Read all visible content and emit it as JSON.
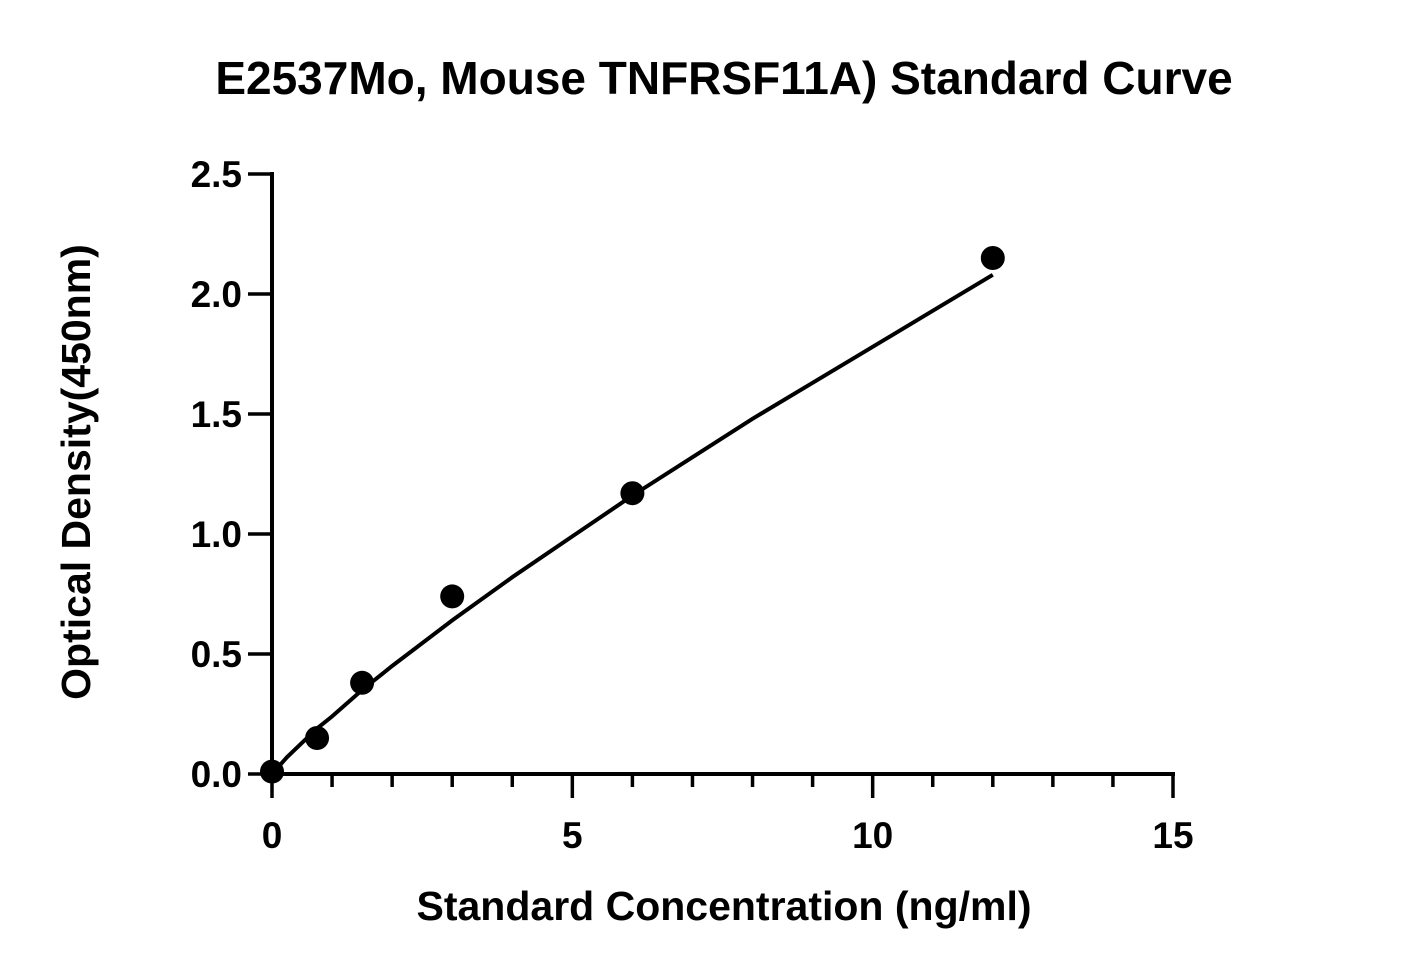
{
  "chart_data": {
    "type": "scatter",
    "title": "E2537Mo, Mouse TNFRSF11A) Standard Curve",
    "xlabel": "Standard Concentration (ng/ml)",
    "ylabel": "Optical Density(450nm)",
    "xlim": [
      0,
      15
    ],
    "ylim": [
      0,
      2.5
    ],
    "x_ticks": [
      0,
      5,
      10,
      15
    ],
    "x_tick_labels": [
      "0",
      "5",
      "10",
      "15"
    ],
    "x_minor_step": 1,
    "y_ticks": [
      0,
      0.5,
      1.0,
      1.5,
      2.0,
      2.5
    ],
    "y_tick_labels": [
      "0.0",
      "0.5",
      "1.0",
      "1.5",
      "2.0",
      "2.5"
    ],
    "grid": false,
    "series": [
      {
        "points": [
          {
            "x": 0,
            "y": 0.01
          },
          {
            "x": 0.75,
            "y": 0.15
          },
          {
            "x": 1.5,
            "y": 0.38
          },
          {
            "x": 3,
            "y": 0.74
          },
          {
            "x": 6,
            "y": 1.17
          },
          {
            "x": 12,
            "y": 2.15
          }
        ],
        "fit_curve": [
          {
            "x": 0,
            "y": 0.0
          },
          {
            "x": 0.25,
            "y": 0.07
          },
          {
            "x": 0.5,
            "y": 0.13
          },
          {
            "x": 0.75,
            "y": 0.19
          },
          {
            "x": 1,
            "y": 0.24
          },
          {
            "x": 1.5,
            "y": 0.35
          },
          {
            "x": 2,
            "y": 0.45
          },
          {
            "x": 3,
            "y": 0.64
          },
          {
            "x": 4,
            "y": 0.82
          },
          {
            "x": 5,
            "y": 0.99
          },
          {
            "x": 6,
            "y": 1.16
          },
          {
            "x": 7,
            "y": 1.32
          },
          {
            "x": 8,
            "y": 1.48
          },
          {
            "x": 9,
            "y": 1.63
          },
          {
            "x": 10,
            "y": 1.78
          },
          {
            "x": 11,
            "y": 1.93
          },
          {
            "x": 12,
            "y": 2.08
          }
        ]
      }
    ],
    "colors": {
      "marker": "#000000",
      "line": "#000000",
      "background": "#ffffff"
    }
  }
}
